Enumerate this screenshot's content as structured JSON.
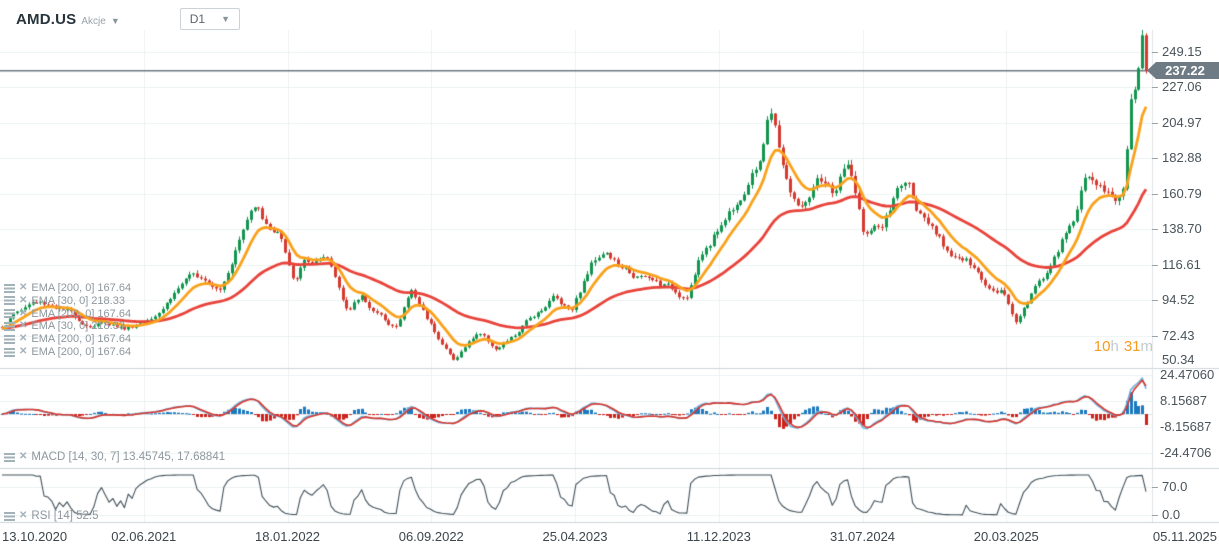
{
  "toolbar": {
    "symbol": "AMD.US",
    "market_label": "Akcje",
    "timeframe": "D1"
  },
  "price_axis": {
    "labels": [
      "249.15",
      "227.06",
      "204.97",
      "182.88",
      "160.79",
      "138.70",
      "116.61",
      "94.52",
      "72.43",
      "50.34"
    ],
    "current_price_label": "237.22"
  },
  "macd_axis": {
    "labels": [
      "24.47060",
      "8.15687",
      "-8.15687",
      "-24.4706"
    ]
  },
  "rsi_axis": {
    "labels": [
      "70.0",
      "0.0"
    ]
  },
  "time_axis": {
    "labels": [
      "13.10.2020",
      "02.06.2021",
      "18.01.2022",
      "06.09.2022",
      "25.04.2023",
      "11.12.2023",
      "31.07.2024",
      "20.03.2025",
      "05.11.2025"
    ]
  },
  "indicator_labels": {
    "ema_rows": [
      "EMA [200, 0] 167.64",
      "EMA [30, 0] 218.33",
      "EMA [200, 0] 167.64",
      "EMA [30, 0] 218.33",
      "EMA [200, 0] 167.64",
      "EMA [200, 0] 167.64"
    ],
    "macd": "MACD [14, 30, 7] 13.45745, 17.68841",
    "rsi": "RSI [14] 52.5"
  },
  "countdown": {
    "hours": "10",
    "hours_unit": "h",
    "minutes": "31",
    "minutes_unit": "m"
  },
  "colors": {
    "candle_up": "#12954f",
    "candle_down": "#d43a2f",
    "ema_fast": "#f9a11b",
    "ema_slow": "#e8433a",
    "macd_line": "#6fb3e0",
    "signal_line": "#d8372d",
    "hist_up": "#1c79c0",
    "hist_down": "#cc221b",
    "rsi_line": "#40505a",
    "price_line": "#6b7a84",
    "tag_bg": "#6e7b85",
    "countdown_accent": "#f89a20",
    "grid": "#edf0f2",
    "separator": "#ccd4d8"
  },
  "chart_data": {
    "type": "candlestick",
    "symbol": "AMD.US",
    "timeframe": "D1",
    "x_range": [
      "13.10.2020",
      "05.11.2025"
    ],
    "y_ticks": [
      249.15,
      227.06,
      204.97,
      182.88,
      160.79,
      138.7,
      116.61,
      94.52,
      72.43,
      50.34
    ],
    "current_price": 237.22,
    "close_anchors": [
      [
        "2020-10-13",
        78
      ],
      [
        "2020-11-01",
        86
      ],
      [
        "2020-12-01",
        93
      ],
      [
        "2021-01-01",
        92
      ],
      [
        "2021-02-01",
        86
      ],
      [
        "2021-03-01",
        79
      ],
      [
        "2021-04-01",
        81
      ],
      [
        "2021-05-01",
        77
      ],
      [
        "2021-06-01",
        82
      ],
      [
        "2021-07-01",
        92
      ],
      [
        "2021-08-01",
        106
      ],
      [
        "2021-09-01",
        110
      ],
      [
        "2021-10-01",
        104
      ],
      [
        "2021-11-08",
        140
      ],
      [
        "2021-11-29",
        158
      ],
      [
        "2021-12-15",
        141
      ],
      [
        "2022-01-04",
        138
      ],
      [
        "2022-01-27",
        104
      ],
      [
        "2022-02-14",
        118
      ],
      [
        "2022-03-24",
        117
      ],
      [
        "2022-04-26",
        88
      ],
      [
        "2022-05-17",
        97
      ],
      [
        "2022-06-16",
        84
      ],
      [
        "2022-07-14",
        78
      ],
      [
        "2022-08-04",
        101
      ],
      [
        "2022-09-02",
        82
      ],
      [
        "2022-10-13",
        57
      ],
      [
        "2022-11-22",
        75
      ],
      [
        "2022-12-22",
        64
      ],
      [
        "2023-01-20",
        72
      ],
      [
        "2023-02-14",
        83
      ],
      [
        "2023-03-23",
        97
      ],
      [
        "2023-04-20",
        89
      ],
      [
        "2023-05-26",
        119
      ],
      [
        "2023-06-13",
        127
      ],
      [
        "2023-07-12",
        113
      ],
      [
        "2023-08-11",
        108
      ],
      [
        "2023-09-14",
        104
      ],
      [
        "2023-10-23",
        97
      ],
      [
        "2023-11-15",
        120
      ],
      [
        "2023-12-11",
        137
      ],
      [
        "2024-01-18",
        160
      ],
      [
        "2024-02-16",
        176
      ],
      [
        "2024-03-07",
        213
      ],
      [
        "2024-04-05",
        165
      ],
      [
        "2024-04-26",
        150
      ],
      [
        "2024-05-21",
        166
      ],
      [
        "2024-06-18",
        159
      ],
      [
        "2024-07-10",
        180
      ],
      [
        "2024-08-06",
        135
      ],
      [
        "2024-09-06",
        140
      ],
      [
        "2024-09-30",
        163
      ],
      [
        "2024-10-14",
        168
      ],
      [
        "2024-11-12",
        142
      ],
      [
        "2024-12-12",
        127
      ],
      [
        "2025-01-17",
        119
      ],
      [
        "2025-02-18",
        104
      ],
      [
        "2025-03-17",
        103
      ],
      [
        "2025-04-08",
        82
      ],
      [
        "2025-05-12",
        104
      ],
      [
        "2025-06-12",
        121
      ],
      [
        "2025-07-14",
        148
      ],
      [
        "2025-08-01",
        174
      ],
      [
        "2025-08-21",
        164
      ],
      [
        "2025-09-17",
        159
      ],
      [
        "2025-10-03",
        164
      ],
      [
        "2025-10-07",
        213
      ],
      [
        "2025-10-17",
        222
      ],
      [
        "2025-10-24",
        240
      ],
      [
        "2025-10-29",
        261
      ],
      [
        "2025-11-03",
        249
      ],
      [
        "2025-11-05",
        237.22
      ]
    ],
    "overlays": [
      {
        "name": "EMA",
        "params": [
          30,
          0
        ],
        "last_value": 218.33
      },
      {
        "name": "EMA",
        "params": [
          200,
          0
        ],
        "last_value": 167.64
      }
    ],
    "macd": {
      "params": [
        14,
        30,
        7
      ],
      "last_values": [
        13.45745,
        17.68841
      ],
      "y_ticks": [
        24.4706,
        8.15687,
        -8.15687,
        -24.4706
      ]
    },
    "rsi": {
      "params": [
        14
      ],
      "last_value": 52.5,
      "y_ticks": [
        70.0,
        0.0
      ]
    }
  }
}
